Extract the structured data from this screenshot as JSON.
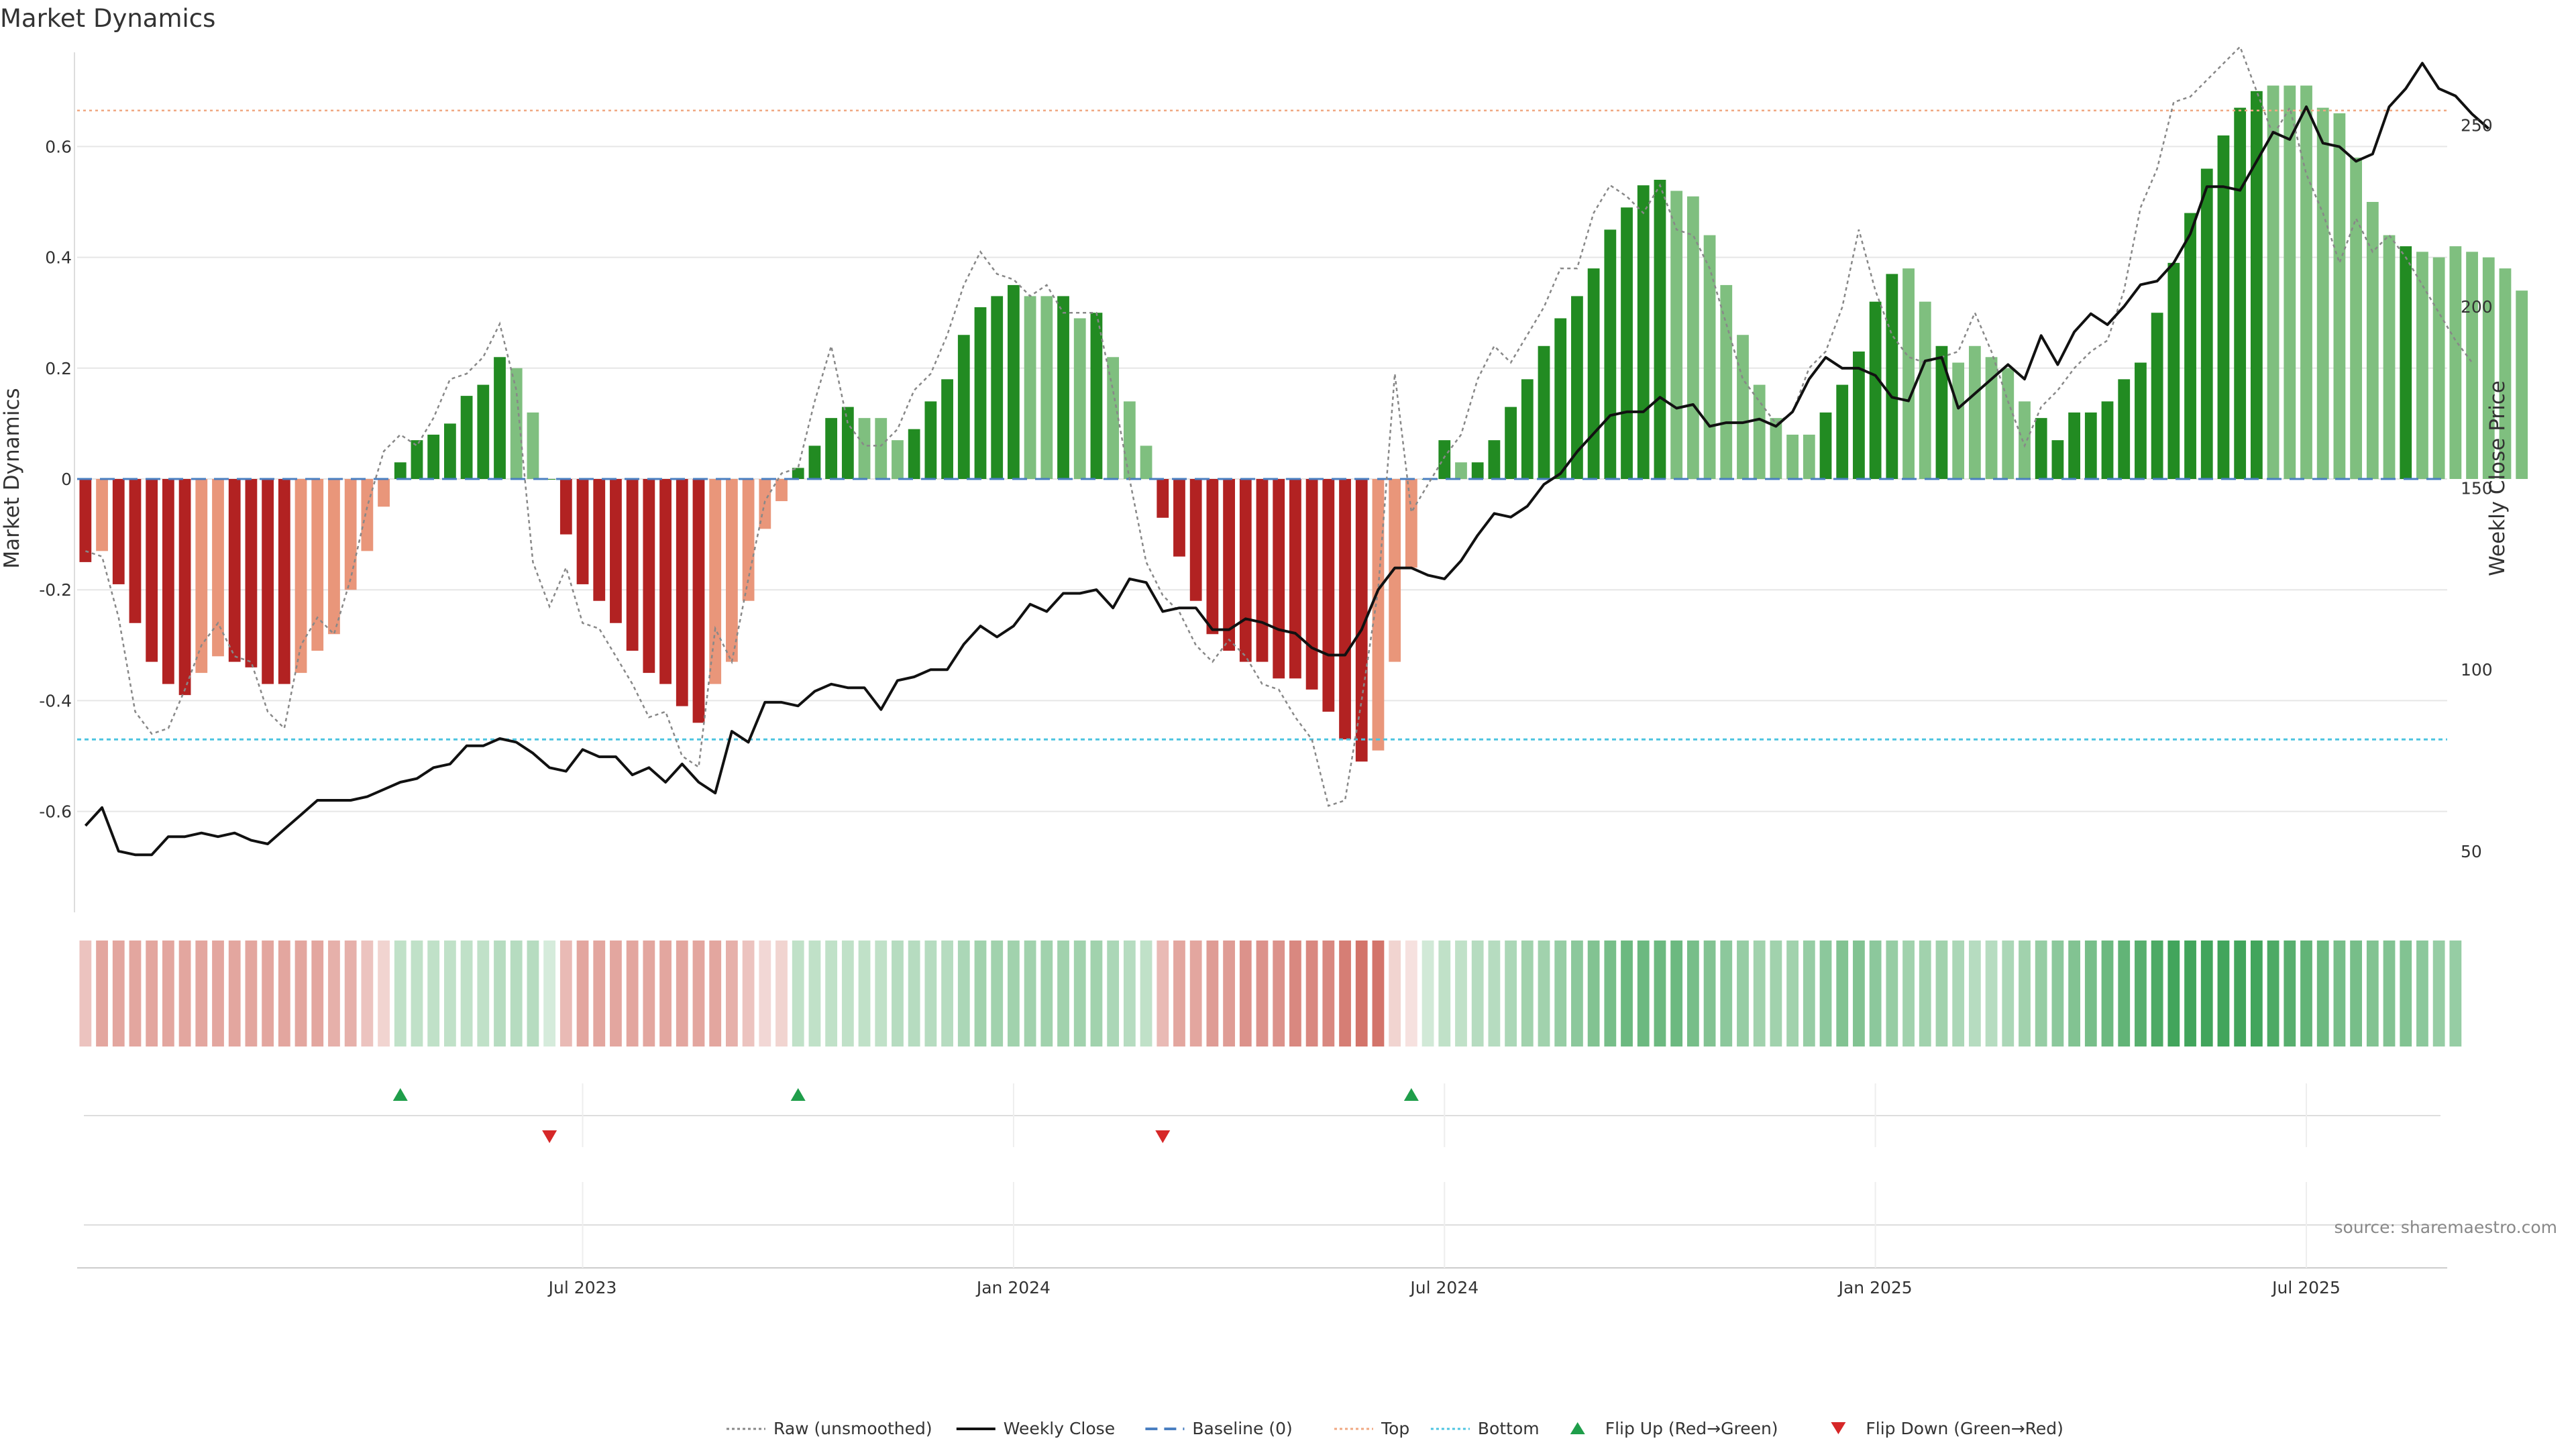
{
  "chart_data": {
    "type": "bar",
    "title": "Market Dynamics",
    "ylabel": "Market Dynamics",
    "y2label": "Weekly Close Price",
    "ylim": [
      -0.77,
      0.77
    ],
    "y2lim": [
      35,
      270
    ],
    "yticks": [
      "-0.6",
      "-0.4",
      "-0.2",
      "0",
      "0.2",
      "0.4",
      "0.6"
    ],
    "y2ticks": [
      "50",
      "100",
      "150",
      "200",
      "250"
    ],
    "xticks": [
      {
        "label": "Jul 2023",
        "week": 30
      },
      {
        "label": "Jan 2024",
        "week": 56
      },
      {
        "label": "Jul 2024",
        "week": 82
      },
      {
        "label": "Jan 2025",
        "week": 108
      },
      {
        "label": "Jul 2025",
        "week": 134
      }
    ],
    "top_line": 0.665,
    "bottom_line": -0.47,
    "weeks": 143,
    "bar_values": [
      -0.15,
      -0.13,
      -0.19,
      -0.26,
      -0.33,
      -0.37,
      -0.39,
      -0.35,
      -0.32,
      -0.33,
      -0.34,
      -0.37,
      -0.37,
      -0.35,
      -0.31,
      -0.28,
      -0.2,
      -0.13,
      -0.05,
      0.03,
      0.07,
      0.08,
      0.1,
      0.15,
      0.17,
      0.22,
      0.2,
      0.12,
      0,
      -0.1,
      -0.19,
      -0.22,
      -0.26,
      -0.31,
      -0.35,
      -0.37,
      -0.41,
      -0.44,
      -0.37,
      -0.33,
      -0.22,
      -0.09,
      -0.04,
      0.02,
      0.06,
      0.11,
      0.13,
      0.11,
      0.11,
      0.07,
      0.09,
      0.14,
      0.18,
      0.26,
      0.31,
      0.33,
      0.35,
      0.33,
      0.33,
      0.33,
      0.29,
      0.3,
      0.22,
      0.14,
      0.06,
      -0.07,
      -0.14,
      -0.22,
      -0.28,
      -0.31,
      -0.33,
      -0.33,
      -0.36,
      -0.36,
      -0.38,
      -0.42,
      -0.47,
      -0.51,
      -0.49,
      -0.33,
      -0.16,
      0.0,
      0.07,
      0.03,
      0.03,
      0.07,
      0.13,
      0.18,
      0.24,
      0.29,
      0.33,
      0.38,
      0.45,
      0.49,
      0.53,
      0.54,
      0.52,
      0.51,
      0.44,
      0.35,
      0.26,
      0.17,
      0.11,
      0.08,
      0.08,
      0.12,
      0.17,
      0.23,
      0.32,
      0.37,
      0.38,
      0.32,
      0.24,
      0.21,
      0.24,
      0.22,
      0.2,
      0.14,
      0.11,
      0.07,
      0.12,
      0.12,
      0.14,
      0.18,
      0.21,
      0.3,
      0.39,
      0.48,
      0.56,
      0.62,
      0.67,
      0.7,
      0.71,
      0.71,
      0.71,
      0.67,
      0.66,
      0.58,
      0.5,
      0.44,
      0.42,
      0.41,
      0.4,
      0.42,
      0.41,
      0.4,
      0.38,
      0.34
    ],
    "bar_shades": [
      "d",
      "l",
      "d",
      "d",
      "d",
      "d",
      "d",
      "l",
      "l",
      "d",
      "d",
      "d",
      "d",
      "l",
      "l",
      "l",
      "l",
      "l",
      "l",
      "d",
      "d",
      "d",
      "d",
      "d",
      "d",
      "d",
      "l",
      "l",
      "d",
      "d",
      "d",
      "d",
      "d",
      "d",
      "d",
      "d",
      "d",
      "d",
      "l",
      "l",
      "l",
      "l",
      "l",
      "d",
      "d",
      "d",
      "d",
      "l",
      "l",
      "l",
      "d",
      "d",
      "d",
      "d",
      "d",
      "d",
      "d",
      "l",
      "l",
      "d",
      "l",
      "d",
      "l",
      "l",
      "l",
      "d",
      "d",
      "d",
      "d",
      "d",
      "d",
      "d",
      "d",
      "d",
      "d",
      "d",
      "d",
      "d",
      "l",
      "l",
      "l",
      "d",
      "d",
      "l",
      "d",
      "d",
      "d",
      "d",
      "d",
      "d",
      "d",
      "d",
      "d",
      "d",
      "d",
      "d",
      "l",
      "l",
      "l",
      "l",
      "l",
      "l",
      "l",
      "l",
      "l",
      "d",
      "d",
      "d",
      "d",
      "d",
      "l",
      "l",
      "d",
      "l",
      "l",
      "l",
      "l",
      "l",
      "d",
      "d",
      "d",
      "d",
      "d",
      "d",
      "d",
      "d",
      "d",
      "d",
      "d",
      "d",
      "d",
      "d",
      "l",
      "l",
      "l",
      "l",
      "l",
      "l",
      "l",
      "l",
      "d",
      "l",
      "l",
      "l",
      "l"
    ],
    "series": [
      {
        "name": "Raw (unsmoothed)",
        "values": [
          -0.13,
          -0.14,
          -0.25,
          -0.42,
          -0.46,
          -0.45,
          -0.38,
          -0.3,
          -0.26,
          -0.32,
          -0.33,
          -0.42,
          -0.45,
          -0.3,
          -0.25,
          -0.28,
          -0.18,
          -0.05,
          0.05,
          0.08,
          0.06,
          0.11,
          0.18,
          0.19,
          0.22,
          0.28,
          0.16,
          -0.15,
          -0.23,
          -0.16,
          -0.26,
          -0.27,
          -0.32,
          -0.37,
          -0.43,
          -0.42,
          -0.5,
          -0.52,
          -0.27,
          -0.33,
          -0.18,
          -0.04,
          0.01,
          0.02,
          0.14,
          0.24,
          0.1,
          0.06,
          0.06,
          0.09,
          0.16,
          0.19,
          0.26,
          0.35,
          0.41,
          0.37,
          0.36,
          0.33,
          0.35,
          0.3,
          0.3,
          0.3,
          0.16,
          0.0,
          -0.15,
          -0.21,
          -0.24,
          -0.3,
          -0.33,
          -0.29,
          -0.32,
          -0.37,
          -0.38,
          -0.43,
          -0.47,
          -0.59,
          -0.58,
          -0.4,
          -0.2,
          0.19,
          -0.06,
          -0.01,
          0.04,
          0.08,
          0.18,
          0.24,
          0.21,
          0.26,
          0.31,
          0.38,
          0.38,
          0.48,
          0.53,
          0.51,
          0.48,
          0.53,
          0.45,
          0.44,
          0.38,
          0.28,
          0.18,
          0.14,
          0.1,
          0.12,
          0.2,
          0.23,
          0.31,
          0.45,
          0.34,
          0.26,
          0.22,
          0.21,
          0.22,
          0.23,
          0.3,
          0.23,
          0.14,
          0.06,
          0.13,
          0.16,
          0.2,
          0.23,
          0.25,
          0.34,
          0.49,
          0.56,
          0.68,
          0.69,
          0.72,
          0.75,
          0.78,
          0.7,
          0.62,
          0.67,
          0.55,
          0.48,
          0.39,
          0.47,
          0.41,
          0.44,
          0.4,
          0.35,
          0.3,
          0.25,
          0.21
        ],
        "style": "dotted",
        "color": "#888888"
      },
      {
        "name": "Weekly Close",
        "values": [
          57,
          62,
          50,
          49,
          49,
          54,
          54,
          55,
          54,
          55,
          53,
          52,
          56,
          60,
          64,
          64,
          64,
          65,
          67,
          69,
          70,
          73,
          74,
          79,
          79,
          81,
          80,
          77,
          73,
          72,
          78,
          76,
          76,
          71,
          73,
          69,
          74,
          69,
          66,
          83,
          80,
          91,
          91,
          90,
          94,
          96,
          95,
          95,
          89,
          97,
          98,
          100,
          100,
          107,
          112,
          109,
          112,
          118,
          116,
          121,
          121,
          122,
          117,
          125,
          124,
          116,
          117,
          117,
          111,
          111,
          114,
          113,
          111,
          110,
          106,
          104,
          104,
          111,
          122,
          128,
          128,
          126,
          125,
          130,
          137,
          143,
          142,
          145,
          151,
          154,
          160,
          165,
          170,
          171,
          171,
          175,
          172,
          173,
          167,
          168,
          168,
          169,
          167,
          171,
          180,
          186,
          183,
          183,
          181,
          175,
          174,
          185,
          186,
          172,
          176,
          180,
          184,
          180,
          192,
          184,
          193,
          198,
          195,
          200,
          206,
          207,
          212,
          220,
          233,
          233,
          232,
          240,
          248,
          246,
          255,
          245,
          244,
          240,
          242,
          255,
          260,
          267,
          260,
          258,
          253,
          249
        ],
        "style": "solid",
        "color": "#111111"
      }
    ],
    "heat_alphas": [
      0.3,
      0.45,
      0.45,
      0.45,
      0.45,
      0.45,
      0.45,
      0.45,
      0.45,
      0.45,
      0.45,
      0.45,
      0.45,
      0.45,
      0.45,
      0.4,
      0.4,
      0.3,
      0.22,
      0.3,
      0.3,
      0.3,
      0.3,
      0.3,
      0.3,
      0.35,
      0.35,
      0.35,
      0.2,
      0.35,
      0.45,
      0.45,
      0.45,
      0.45,
      0.45,
      0.45,
      0.45,
      0.45,
      0.45,
      0.4,
      0.3,
      0.2,
      0.22,
      0.3,
      0.3,
      0.3,
      0.3,
      0.3,
      0.3,
      0.35,
      0.35,
      0.35,
      0.35,
      0.4,
      0.45,
      0.45,
      0.45,
      0.45,
      0.45,
      0.45,
      0.45,
      0.45,
      0.4,
      0.35,
      0.3,
      0.35,
      0.45,
      0.45,
      0.5,
      0.5,
      0.55,
      0.55,
      0.55,
      0.6,
      0.6,
      0.6,
      0.65,
      0.7,
      0.7,
      0.22,
      0.15,
      0.22,
      0.3,
      0.3,
      0.35,
      0.35,
      0.4,
      0.45,
      0.45,
      0.5,
      0.55,
      0.6,
      0.65,
      0.7,
      0.7,
      0.7,
      0.7,
      0.65,
      0.6,
      0.55,
      0.5,
      0.45,
      0.45,
      0.45,
      0.5,
      0.55,
      0.6,
      0.6,
      0.55,
      0.5,
      0.45,
      0.45,
      0.45,
      0.4,
      0.35,
      0.35,
      0.4,
      0.45,
      0.5,
      0.55,
      0.6,
      0.65,
      0.7,
      0.75,
      0.8,
      0.85,
      0.9,
      0.9,
      0.9,
      0.9,
      0.9,
      0.9,
      0.85,
      0.8,
      0.75,
      0.7,
      0.65,
      0.65,
      0.6,
      0.6,
      0.6,
      0.55,
      0.5,
      0.5
    ],
    "flips_up": [
      19,
      43,
      80
    ],
    "flips_down": [
      28,
      65
    ],
    "legend": [
      {
        "label": "Raw (unsmoothed)",
        "kind": "dotted",
        "color": "#888888"
      },
      {
        "label": "Weekly Close",
        "kind": "solid",
        "color": "#111111"
      },
      {
        "label": "Baseline (0)",
        "kind": "dashed",
        "color": "#4a7fc1"
      },
      {
        "label": "Top",
        "kind": "dotted",
        "color": "#f0a882"
      },
      {
        "label": "Bottom",
        "kind": "dotted",
        "color": "#4cc4e0"
      },
      {
        "label": "Flip Up (Red→Green)",
        "kind": "triangle-up",
        "color": "#1f9e4a"
      },
      {
        "label": "Flip Down (Green→Red)",
        "kind": "triangle-down",
        "color": "#d62728"
      }
    ],
    "colors": {
      "red_dark": "#b22222",
      "red_light": "#e9967a",
      "green_dark": "#228b22",
      "green_light": "#7fbf7f",
      "heat_red": "#c0392b",
      "heat_green": "#2e9b4a"
    },
    "source": "source: sharemaestro.com"
  }
}
